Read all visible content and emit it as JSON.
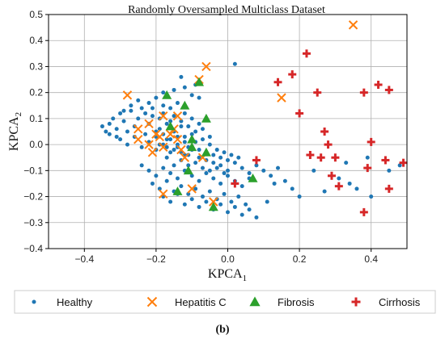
{
  "chart_data": {
    "type": "scatter",
    "title": "Randomly Oversampled Multiclass Dataset",
    "xlabel": {
      "base": "KPCA",
      "sub": "1"
    },
    "ylabel": {
      "base": "KPCA",
      "sub": "2"
    },
    "xlim": [
      -0.5,
      0.5
    ],
    "ylim": [
      -0.4,
      0.5
    ],
    "xticks": [
      -0.4,
      -0.2,
      0.0,
      0.2,
      0.4
    ],
    "xtick_labels": [
      "−0.4",
      "−0.2",
      "0.0",
      "0.2",
      "0.4"
    ],
    "yticks": [
      -0.4,
      -0.3,
      -0.2,
      -0.1,
      0.0,
      0.1,
      0.2,
      0.3,
      0.4,
      0.5
    ],
    "ytick_labels": [
      "−0.4",
      "−0.3",
      "−0.2",
      "−0.1",
      "0.0",
      "0.1",
      "0.2",
      "0.3",
      "0.4",
      "0.5"
    ],
    "grid": true,
    "legend_position": "bottom",
    "caption": "(b)",
    "series": [
      {
        "name": "Healthy",
        "marker": "circle",
        "color": "#1f77b4",
        "points": [
          [
            -0.34,
            0.05
          ],
          [
            -0.33,
            0.08
          ],
          [
            -0.32,
            0.1
          ],
          [
            -0.31,
            0.06
          ],
          [
            -0.3,
            0.12
          ],
          [
            -0.29,
            0.09
          ],
          [
            -0.28,
            0.05
          ],
          [
            -0.27,
            0.13
          ],
          [
            -0.26,
            0.07
          ],
          [
            -0.25,
            0.1
          ],
          [
            -0.24,
            0.14
          ],
          [
            -0.23,
            0.04
          ],
          [
            -0.22,
            0.08
          ],
          [
            -0.21,
            0.11
          ],
          [
            -0.2,
            0.03
          ],
          [
            -0.19,
            0.06
          ],
          [
            -0.18,
            0.12
          ],
          [
            -0.17,
            0.02
          ],
          [
            -0.16,
            0.09
          ],
          [
            -0.15,
            0.05
          ],
          [
            -0.14,
            0.0
          ],
          [
            -0.13,
            0.07
          ],
          [
            -0.12,
            0.03
          ],
          [
            -0.11,
            -0.01
          ],
          [
            -0.1,
            0.04
          ],
          [
            -0.09,
            0.01
          ],
          [
            -0.08,
            -0.02
          ],
          [
            -0.07,
            0.02
          ],
          [
            -0.06,
            -0.03
          ],
          [
            -0.05,
            0.0
          ],
          [
            -0.04,
            -0.04
          ],
          [
            -0.03,
            -0.02
          ],
          [
            -0.02,
            -0.05
          ],
          [
            -0.01,
            -0.03
          ],
          [
            0.0,
            -0.06
          ],
          [
            0.01,
            -0.04
          ],
          [
            -0.3,
            0.02
          ],
          [
            -0.28,
            0.0
          ],
          [
            -0.26,
            0.03
          ],
          [
            -0.24,
            -0.01
          ],
          [
            -0.22,
            0.01
          ],
          [
            -0.2,
            -0.02
          ],
          [
            -0.18,
            0.0
          ],
          [
            -0.16,
            -0.03
          ],
          [
            -0.14,
            -0.01
          ],
          [
            -0.12,
            -0.04
          ],
          [
            -0.1,
            -0.02
          ],
          [
            -0.08,
            -0.05
          ],
          [
            -0.06,
            -0.06
          ],
          [
            -0.04,
            -0.07
          ],
          [
            -0.27,
            0.15
          ],
          [
            -0.25,
            0.17
          ],
          [
            -0.22,
            0.16
          ],
          [
            -0.2,
            0.18
          ],
          [
            -0.18,
            0.15
          ],
          [
            -0.16,
            0.14
          ],
          [
            -0.14,
            0.16
          ],
          [
            -0.12,
            0.12
          ],
          [
            -0.1,
            0.1
          ],
          [
            -0.08,
            0.08
          ],
          [
            -0.23,
            0.12
          ],
          [
            -0.21,
            0.14
          ],
          [
            -0.19,
            0.1
          ],
          [
            -0.17,
            0.08
          ],
          [
            -0.15,
            0.11
          ],
          [
            -0.13,
            0.09
          ],
          [
            -0.11,
            0.07
          ],
          [
            -0.09,
            0.05
          ],
          [
            -0.07,
            0.06
          ],
          [
            -0.05,
            0.03
          ],
          [
            -0.2,
            0.05
          ],
          [
            -0.19,
            0.0
          ],
          [
            -0.18,
            0.04
          ],
          [
            -0.17,
            -0.01
          ],
          [
            -0.16,
            0.02
          ],
          [
            -0.15,
            -0.02
          ],
          [
            -0.14,
            0.03
          ],
          [
            -0.13,
            -0.03
          ],
          [
            -0.12,
            0.01
          ],
          [
            -0.11,
            -0.04
          ],
          [
            -0.24,
            -0.08
          ],
          [
            -0.22,
            -0.1
          ],
          [
            -0.2,
            -0.12
          ],
          [
            -0.18,
            -0.09
          ],
          [
            -0.16,
            -0.11
          ],
          [
            -0.14,
            -0.13
          ],
          [
            -0.12,
            -0.1
          ],
          [
            -0.1,
            -0.12
          ],
          [
            -0.08,
            -0.14
          ],
          [
            -0.06,
            -0.11
          ],
          [
            -0.04,
            -0.13
          ],
          [
            -0.02,
            -0.15
          ],
          [
            0.0,
            -0.12
          ],
          [
            0.02,
            -0.14
          ],
          [
            0.04,
            -0.16
          ],
          [
            0.06,
            -0.13
          ],
          [
            -0.21,
            -0.15
          ],
          [
            -0.19,
            -0.17
          ],
          [
            -0.17,
            -0.14
          ],
          [
            -0.15,
            -0.18
          ],
          [
            -0.13,
            -0.16
          ],
          [
            -0.11,
            -0.19
          ],
          [
            -0.09,
            -0.17
          ],
          [
            -0.07,
            -0.2
          ],
          [
            -0.05,
            -0.18
          ],
          [
            -0.03,
            -0.21
          ],
          [
            -0.01,
            -0.19
          ],
          [
            0.01,
            -0.22
          ],
          [
            0.03,
            -0.2
          ],
          [
            0.05,
            -0.23
          ],
          [
            -0.18,
            -0.2
          ],
          [
            -0.16,
            -0.22
          ],
          [
            -0.14,
            -0.19
          ],
          [
            -0.12,
            -0.23
          ],
          [
            -0.1,
            -0.21
          ],
          [
            -0.08,
            -0.24
          ],
          [
            -0.06,
            -0.22
          ],
          [
            -0.04,
            -0.25
          ],
          [
            -0.02,
            -0.23
          ],
          [
            0.0,
            -0.26
          ],
          [
            0.02,
            -0.24
          ],
          [
            0.04,
            -0.27
          ],
          [
            0.06,
            -0.25
          ],
          [
            0.08,
            -0.28
          ],
          [
            -0.02,
            -0.08
          ],
          [
            0.0,
            -0.1
          ],
          [
            0.02,
            -0.07
          ],
          [
            0.04,
            -0.09
          ],
          [
            0.06,
            -0.11
          ],
          [
            0.08,
            -0.08
          ],
          [
            0.1,
            -0.1
          ],
          [
            0.12,
            -0.12
          ],
          [
            0.14,
            -0.09
          ],
          [
            0.16,
            -0.14
          ],
          [
            0.18,
            -0.17
          ],
          [
            0.2,
            -0.2
          ],
          [
            0.11,
            -0.22
          ],
          [
            0.13,
            -0.15
          ],
          [
            -0.15,
            0.21
          ],
          [
            -0.12,
            0.22
          ],
          [
            -0.1,
            0.19
          ],
          [
            -0.08,
            0.18
          ],
          [
            -0.18,
            0.2
          ],
          [
            -0.13,
            0.26
          ],
          [
            -0.09,
            0.23
          ],
          [
            0.02,
            0.31
          ],
          [
            -0.35,
            0.07
          ],
          [
            -0.33,
            0.04
          ],
          [
            -0.31,
            0.03
          ],
          [
            -0.29,
            0.13
          ],
          [
            0.24,
            -0.1
          ],
          [
            0.27,
            -0.18
          ],
          [
            0.31,
            -0.13
          ],
          [
            0.33,
            -0.07
          ],
          [
            0.36,
            -0.17
          ],
          [
            0.39,
            -0.05
          ],
          [
            0.4,
            -0.2
          ],
          [
            0.45,
            -0.1
          ],
          [
            0.48,
            -0.08
          ],
          [
            0.34,
            -0.15
          ],
          [
            -0.07,
            -0.09
          ],
          [
            -0.09,
            -0.07
          ],
          [
            -0.05,
            -0.1
          ],
          [
            -0.03,
            -0.09
          ],
          [
            -0.01,
            -0.11
          ],
          [
            0.03,
            -0.05
          ],
          [
            -0.11,
            -0.08
          ],
          [
            -0.13,
            -0.06
          ],
          [
            -0.15,
            -0.08
          ],
          [
            -0.17,
            -0.05
          ]
        ]
      },
      {
        "name": "Hepatitis C",
        "marker": "x",
        "color": "#ff7f0e",
        "points": [
          [
            0.35,
            0.46
          ],
          [
            -0.06,
            0.3
          ],
          [
            -0.08,
            0.25
          ],
          [
            -0.28,
            0.19
          ],
          [
            0.15,
            0.18
          ],
          [
            -0.18,
            0.11
          ],
          [
            -0.14,
            0.11
          ],
          [
            -0.25,
            0.06
          ],
          [
            -0.22,
            0.08
          ],
          [
            -0.2,
            0.04
          ],
          [
            -0.15,
            0.06
          ],
          [
            -0.25,
            0.02
          ],
          [
            -0.22,
            0.0
          ],
          [
            -0.21,
            -0.03
          ],
          [
            -0.18,
            -0.01
          ],
          [
            -0.16,
            0.04
          ],
          [
            -0.14,
            0.02
          ],
          [
            -0.13,
            -0.02
          ],
          [
            -0.12,
            -0.05
          ],
          [
            -0.18,
            -0.19
          ],
          [
            -0.1,
            -0.17
          ],
          [
            -0.04,
            -0.22
          ],
          [
            -0.07,
            -0.05
          ],
          [
            -0.19,
            0.03
          ]
        ]
      },
      {
        "name": "Fibrosis",
        "marker": "triangle",
        "color": "#2ca02c",
        "points": [
          [
            -0.08,
            0.24
          ],
          [
            -0.17,
            0.19
          ],
          [
            -0.12,
            0.15
          ],
          [
            -0.06,
            0.1
          ],
          [
            -0.1,
            0.02
          ],
          [
            -0.06,
            -0.03
          ],
          [
            -0.11,
            -0.1
          ],
          [
            0.07,
            -0.13
          ],
          [
            -0.14,
            -0.18
          ],
          [
            -0.04,
            -0.24
          ],
          [
            -0.16,
            0.07
          ],
          [
            -0.1,
            -0.01
          ]
        ]
      },
      {
        "name": "Cirrhosis",
        "marker": "plus",
        "color": "#d62728",
        "points": [
          [
            0.22,
            0.35
          ],
          [
            0.18,
            0.27
          ],
          [
            0.25,
            0.2
          ],
          [
            0.2,
            0.12
          ],
          [
            0.14,
            0.24
          ],
          [
            0.38,
            0.2
          ],
          [
            0.42,
            0.23
          ],
          [
            0.45,
            0.21
          ],
          [
            0.27,
            0.05
          ],
          [
            0.28,
            0.0
          ],
          [
            0.23,
            -0.04
          ],
          [
            0.26,
            -0.05
          ],
          [
            0.3,
            -0.05
          ],
          [
            0.4,
            0.01
          ],
          [
            0.44,
            -0.06
          ],
          [
            0.39,
            -0.09
          ],
          [
            0.49,
            -0.07
          ],
          [
            0.29,
            -0.12
          ],
          [
            0.31,
            -0.16
          ],
          [
            0.45,
            -0.17
          ],
          [
            0.38,
            -0.26
          ],
          [
            0.08,
            -0.06
          ],
          [
            0.02,
            -0.15
          ]
        ]
      }
    ]
  }
}
